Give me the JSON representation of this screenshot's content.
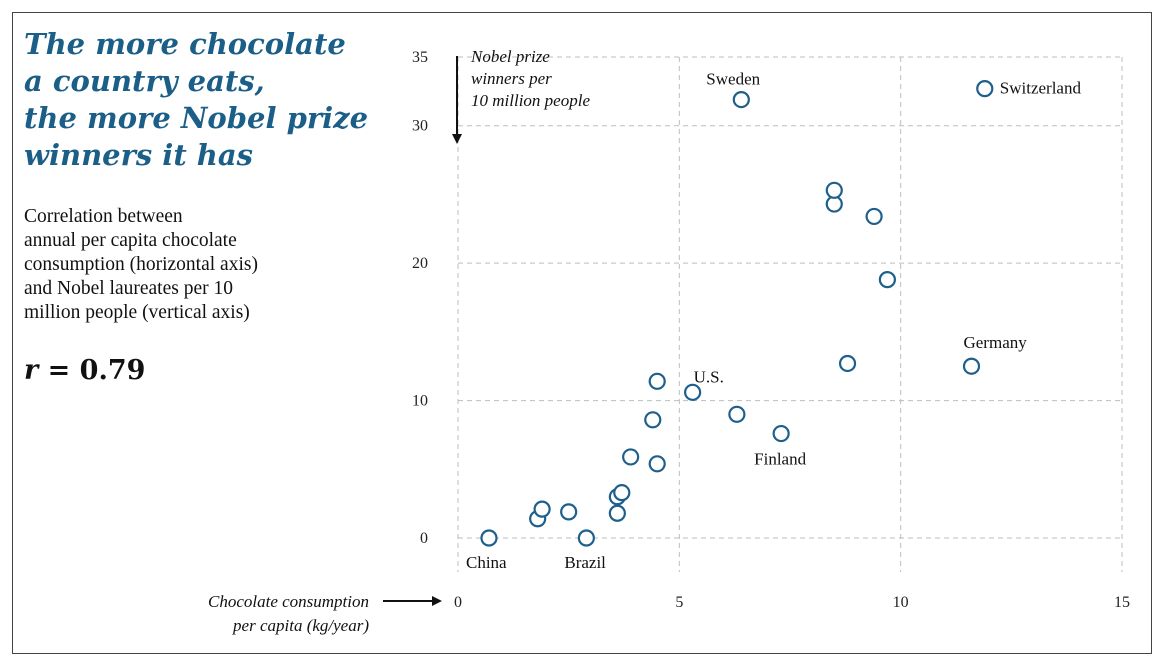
{
  "headline": {
    "lines": [
      "The more chocolate",
      "a country eats,",
      "the more Nobel prize",
      "winners it has"
    ]
  },
  "description": {
    "lines": [
      "Correlation between",
      "annual per capita chocolate",
      "consumption (horizontal axis)",
      "and Nobel laureates per 10",
      "million people (vertical axis)"
    ]
  },
  "stat": {
    "symbol": "r",
    "equals": "=",
    "value": "0.79"
  },
  "colors": {
    "headline": "#1b5e87",
    "marker": "#1f5f8b",
    "grid": "#bdbdbd",
    "text": "#111111"
  },
  "chart_data": {
    "type": "scatter",
    "title": "The more chocolate a country eats, the more Nobel prize winners it has",
    "xlabel": "Chocolate consumption per capita (kg/year)",
    "ylabel": "Nobel prize winners per 10 million people",
    "xlabel_lines": [
      "Chocolate consumption",
      "per capita (kg/year)"
    ],
    "ylabel_lines": [
      "Nobel prize",
      "winners per",
      "10 million people"
    ],
    "xlim": [
      0,
      15
    ],
    "ylim": [
      0,
      35
    ],
    "xticks": [
      0,
      5,
      10,
      15
    ],
    "yticks": [
      0,
      10,
      20,
      30,
      35
    ],
    "grid": true,
    "correlation": 0.79,
    "points": [
      {
        "x": 0.7,
        "y": 0.0,
        "label": "China"
      },
      {
        "x": 2.9,
        "y": 0.0,
        "label": "Brazil"
      },
      {
        "x": 1.8,
        "y": 1.4,
        "label": ""
      },
      {
        "x": 1.9,
        "y": 2.1,
        "label": ""
      },
      {
        "x": 2.5,
        "y": 1.9,
        "label": ""
      },
      {
        "x": 3.6,
        "y": 1.8,
        "label": ""
      },
      {
        "x": 3.6,
        "y": 3.0,
        "label": ""
      },
      {
        "x": 3.7,
        "y": 3.3,
        "label": ""
      },
      {
        "x": 3.9,
        "y": 5.9,
        "label": ""
      },
      {
        "x": 4.4,
        "y": 8.6,
        "label": ""
      },
      {
        "x": 4.5,
        "y": 11.4,
        "label": ""
      },
      {
        "x": 4.5,
        "y": 5.4,
        "label": ""
      },
      {
        "x": 5.3,
        "y": 10.6,
        "label": "U.S."
      },
      {
        "x": 6.3,
        "y": 9.0,
        "label": ""
      },
      {
        "x": 6.4,
        "y": 31.9,
        "label": "Sweden"
      },
      {
        "x": 7.3,
        "y": 7.6,
        "label": "Finland"
      },
      {
        "x": 8.5,
        "y": 24.3,
        "label": ""
      },
      {
        "x": 8.5,
        "y": 25.3,
        "label": ""
      },
      {
        "x": 8.8,
        "y": 12.7,
        "label": ""
      },
      {
        "x": 9.4,
        "y": 23.4,
        "label": ""
      },
      {
        "x": 9.7,
        "y": 18.8,
        "label": ""
      },
      {
        "x": 11.6,
        "y": 12.5,
        "label": "Germany"
      },
      {
        "x": 11.9,
        "y": 32.7,
        "label": "Switzerland"
      }
    ]
  }
}
